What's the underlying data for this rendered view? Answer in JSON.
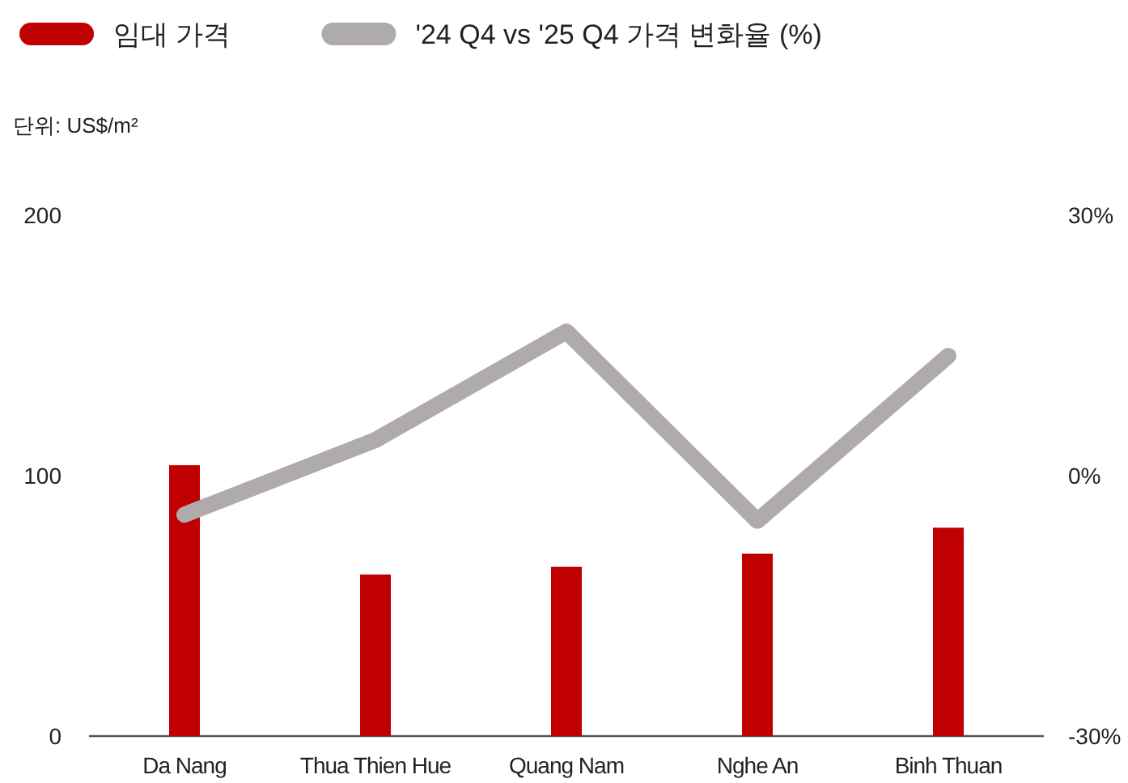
{
  "chart_data": {
    "type": "bar",
    "categories": [
      "Da Nang",
      "Thua Thien Hue",
      "Quang Nam",
      "Nghe An",
      "Binh Thuan"
    ],
    "series": [
      {
        "name": "임대 가격",
        "color": "#c00000",
        "values": [
          104,
          62,
          65,
          70,
          80
        ]
      },
      {
        "name": "'24 Q4 vs '25 Q4 가격 변화율 (%)",
        "type": "line",
        "axis": "y2",
        "color": "#afabab",
        "values": [
          -4.5,
          4.1,
          16.6,
          -5.2,
          13.8
        ]
      }
    ],
    "annotations": [
      "단위: US$/m²"
    ],
    "ylim": [
      0,
      200
    ],
    "yticks": [
      0,
      100,
      200
    ],
    "y2lim": [
      -30,
      30
    ],
    "y2ticks": [
      {
        "value": -30,
        "label": "-30%"
      },
      {
        "value": 0,
        "label": "0%"
      },
      {
        "value": 30,
        "label": "30%"
      }
    ],
    "grid": false,
    "legend": "top left",
    "marker": "none",
    "line_style": "solid"
  }
}
